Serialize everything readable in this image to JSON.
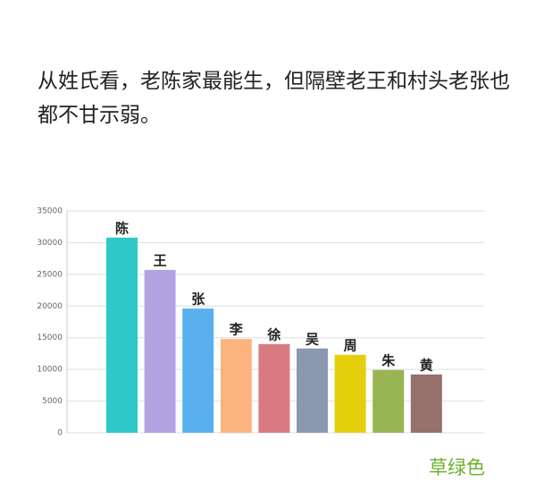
{
  "caption": "从姓氏看，老陈家最能生，但隔壁老王和村头老张也都不甘示弱。",
  "watermark": "草绿色",
  "chart_data": {
    "type": "bar",
    "categories": [
      "陈",
      "王",
      "张",
      "李",
      "徐",
      "吴",
      "周",
      "朱",
      "黄"
    ],
    "values": [
      30800,
      25700,
      19600,
      14800,
      14000,
      13300,
      12300,
      9900,
      9200
    ],
    "colors": [
      "#2ec8c8",
      "#b0a4e0",
      "#5ab0ee",
      "#fbb47e",
      "#d87a80",
      "#8c98b0",
      "#e5cf0d",
      "#97b552",
      "#95706d"
    ],
    "ylim": [
      0,
      35000
    ],
    "yticks": [
      0,
      5000,
      10000,
      15000,
      20000,
      25000,
      30000,
      35000
    ],
    "grid": true
  }
}
